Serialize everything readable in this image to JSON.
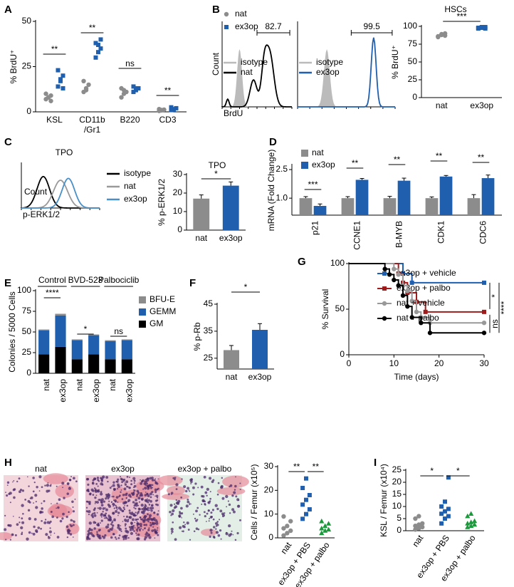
{
  "chart_data": [
    {
      "type": "dot",
      "label": "A",
      "ylabel": "% BrdU⁺",
      "categories": [
        "KSL",
        "CD11b\n/Gr1",
        "B220",
        "CD3"
      ],
      "ylim": [
        0,
        50
      ],
      "yticks": [
        0,
        25,
        50
      ],
      "legend": "upper right",
      "series": [
        {
          "name": "nat",
          "color": "#8c8c8c",
          "marker": "circle",
          "values": [
            [
              7,
              8,
              9,
              10,
              8,
              6
            ],
            [
              11,
              13,
              15,
              17,
              12
            ],
            [
              8,
              10,
              11,
              13,
              12
            ],
            [
              0.5,
              1,
              1.2,
              1.5,
              0.8
            ]
          ]
        },
        {
          "name": "ex3op",
          "color": "#1f5fae",
          "marker": "square",
          "values": [
            [
              14,
              17,
              20,
              23,
              18,
              13
            ],
            [
              30,
              33,
              35,
              38,
              37,
              40
            ],
            [
              11,
              12,
              13,
              14,
              13
            ],
            [
              1,
              1.5,
              2,
              2.5,
              1.2
            ]
          ]
        }
      ],
      "annotations": [
        "**",
        "**",
        "ns",
        "**"
      ]
    },
    {
      "type": "flow",
      "label": "B",
      "ylabel": "Count",
      "xlabel": "BrdU",
      "series": [
        {
          "name": "isotype",
          "color": "#bbbbbb"
        },
        {
          "name": "nat",
          "color": "#000000"
        }
      ],
      "annotations": [
        "82.7"
      ]
    },
    {
      "type": "flow",
      "series": [
        {
          "name": "isotype",
          "color": "#bbbbbb"
        },
        {
          "name": "ex3op",
          "color": "#1f5fae"
        }
      ],
      "annotations": [
        "99.5"
      ]
    },
    {
      "type": "dot",
      "title": "HSCs",
      "ylabel": "% BrdU⁺",
      "categories": [
        "nat",
        "ex3op"
      ],
      "ylim": [
        0,
        100
      ],
      "yticks": [
        0,
        25,
        50,
        75,
        100
      ],
      "colors": [
        "#8c8c8c",
        "#1f5fae"
      ],
      "markers": [
        "circle",
        "square"
      ],
      "values": [
        [
          85,
          88,
          90,
          86,
          89,
          87
        ],
        [
          97,
          98,
          99,
          98,
          99,
          97
        ]
      ],
      "annotations": [
        "***"
      ]
    },
    {
      "type": "flow",
      "label": "C",
      "title": "TPO",
      "ylabel": "Count",
      "xlabel": "p-ERK1/2",
      "series": [
        {
          "name": "isotype",
          "color": "#000000"
        },
        {
          "name": "nat",
          "color": "#999999"
        },
        {
          "name": "ex3op",
          "color": "#4a90c8"
        }
      ]
    },
    {
      "type": "bar",
      "title": "TPO",
      "ylabel": "% p-ERK1/2",
      "categories": [
        "nat",
        "ex3op"
      ],
      "values": [
        17,
        24
      ],
      "errors": [
        2,
        2
      ],
      "colors": [
        "#8c8c8c",
        "#1f5fae"
      ],
      "ylim": [
        0,
        30
      ],
      "yticks": [
        0,
        10,
        20,
        30
      ],
      "annotations": [
        "*"
      ]
    },
    {
      "type": "groupbar",
      "label": "D",
      "ylabel": "mRNA (Fold Change)",
      "log": true,
      "categories": [
        "p21",
        "CCNE1",
        "B-MYB",
        "CDK1",
        "CDC6"
      ],
      "ylim": [
        0.58,
        2.87
      ],
      "yticks": [
        {
          "value": 1,
          "label": "1.0"
        },
        2.5
      ],
      "series": [
        {
          "name": "nat",
          "color": "#8c8c8c",
          "values": [
            1,
            1,
            1,
            1,
            1
          ],
          "errors": [
            0.05,
            0.05,
            0.06,
            0.04,
            0.12
          ]
        },
        {
          "name": "ex3op",
          "color": "#1f5fae",
          "values": [
            0.78,
            1.8,
            1.75,
            2,
            1.9
          ],
          "errors": [
            0.05,
            0.08,
            0.15,
            0.07,
            0.2
          ]
        }
      ],
      "annotations": [
        "***",
        "**",
        "**",
        "**",
        "**"
      ]
    },
    {
      "type": "stacked",
      "label": "E",
      "ylabel": "Colonies / 5000 Cells",
      "categories": [
        "nat",
        "ex3op",
        "nat",
        "ex3op",
        "nat",
        "ex3op"
      ],
      "groups": [
        "Control",
        "BVD-523",
        "Palbociclib"
      ],
      "ylim": [
        0,
        100
      ],
      "yticks": [
        0,
        25,
        50,
        75,
        100
      ],
      "series": [
        {
          "name": "GM",
          "color": "#000000",
          "values": [
            23,
            32,
            17,
            23,
            17,
            17
          ]
        },
        {
          "name": "GEMM",
          "color": "#1f5fae",
          "values": [
            29,
            38,
            23,
            23,
            22,
            23
          ]
        },
        {
          "name": "BFU-E",
          "color": "#8c8c8c",
          "values": [
            1,
            2,
            1,
            1,
            1,
            1
          ]
        }
      ],
      "annotations": [
        "****",
        "*",
        "ns"
      ]
    },
    {
      "type": "bar",
      "label": "F",
      "ylabel": "% p-Rb",
      "categories": [
        "nat",
        "ex3op"
      ],
      "values": [
        28,
        35.5
      ],
      "errors": [
        1.7,
        2.3
      ],
      "colors": [
        "#8c8c8c",
        "#1f5fae"
      ],
      "ylim": [
        21,
        45
      ],
      "yticks": [
        25,
        35,
        45
      ],
      "annotations": [
        "*"
      ]
    },
    {
      "type": "survival",
      "label": "G",
      "xlabel": "Time (days)",
      "ylabel": "% Survival",
      "xlim": [
        0,
        30
      ],
      "xticks": [
        0,
        10,
        20,
        30
      ],
      "ylim": [
        0,
        100
      ],
      "yticks": [
        0,
        50,
        100
      ],
      "series": [
        {
          "name": "ex3op + vehicle",
          "color": "#1f5fae",
          "marker": "square",
          "x": [
            0,
            12,
            14,
            30
          ],
          "values": [
            100,
            89,
            79,
            79
          ]
        },
        {
          "name": "ex3op + palbo",
          "color": "#a01c1c",
          "marker": "square",
          "x": [
            0,
            11,
            12,
            13,
            15,
            17,
            30
          ],
          "values": [
            100,
            89,
            79,
            68,
            58,
            47,
            47
          ]
        },
        {
          "name": "nat + vehicle",
          "color": "#999999",
          "marker": "circle",
          "x": [
            0,
            10,
            11,
            12,
            13,
            14,
            15,
            16,
            18,
            30
          ],
          "values": [
            100,
            94,
            88,
            76,
            70,
            59,
            47,
            41,
            35,
            35
          ]
        },
        {
          "name": "nat + palbo",
          "color": "#000000",
          "marker": "circle",
          "x": [
            0,
            8,
            9,
            10,
            11,
            12,
            13,
            14,
            16,
            18,
            30
          ],
          "values": [
            100,
            94,
            88,
            82,
            76,
            65,
            53,
            41,
            35,
            24,
            24
          ]
        }
      ],
      "annotations": [
        "*",
        "****",
        "ns"
      ]
    },
    {
      "type": "images",
      "label": "H",
      "captions": [
        "nat",
        "ex3op",
        "ex3op + palbo"
      ]
    },
    {
      "type": "dot",
      "ylabel": "Cells / Femur (x10⁵)",
      "categories": [
        "nat",
        "ex3op + PBS",
        "ex3op + palbo"
      ],
      "ylim": [
        0,
        30
      ],
      "yticks": [
        0,
        10,
        20,
        30
      ],
      "colors": [
        "#8c8c8c",
        "#1f5fae",
        "#1a9a3a"
      ],
      "markers": [
        "circle",
        "square",
        "triangle"
      ],
      "values": [
        [
          1,
          2,
          3,
          4,
          5,
          7,
          9
        ],
        [
          8,
          10,
          12,
          14,
          16,
          18,
          21,
          25
        ],
        [
          2,
          3,
          3.5,
          4,
          5,
          6,
          7
        ]
      ],
      "annotations": [
        "**",
        "**"
      ]
    },
    {
      "type": "dot",
      "label": "I",
      "ylabel": "KSL / Femur (x10⁴)",
      "categories": [
        "nat",
        "ex3op + PBS",
        "ex3op + palbo"
      ],
      "ylim": [
        0,
        25
      ],
      "yticks": [
        0,
        5,
        10,
        15,
        20,
        25
      ],
      "colors": [
        "#8c8c8c",
        "#1f5fae",
        "#1a9a3a"
      ],
      "markers": [
        "circle",
        "square",
        "triangle"
      ],
      "values": [
        [
          0.5,
          1,
          1.5,
          2,
          2.5,
          3,
          5,
          6
        ],
        [
          3,
          5,
          6,
          7,
          8,
          9,
          10,
          12,
          22
        ],
        [
          1.5,
          2,
          2.5,
          3,
          3.5,
          4,
          6,
          7
        ]
      ],
      "annotations": [
        "*",
        "*"
      ]
    }
  ]
}
